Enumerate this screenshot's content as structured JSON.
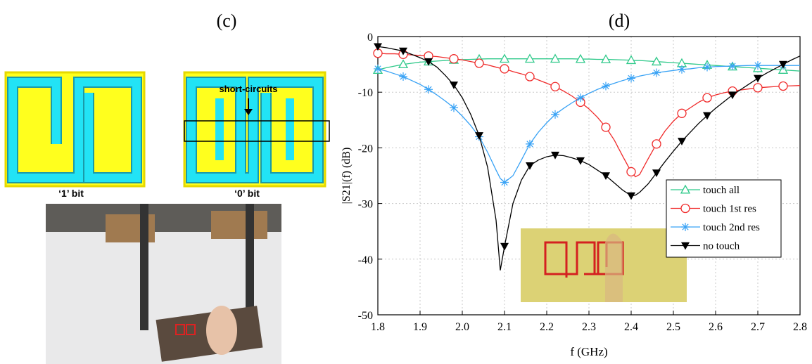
{
  "panel_c": {
    "label": "(c)",
    "annotation": "short-circuits",
    "bit_labels": [
      "‘1’ bit",
      "‘0’ bit"
    ]
  },
  "chart_data": {
    "type": "line",
    "title": "(d)",
    "x_label": "f (GHz)",
    "y_label": "|S21|(f) (dB)",
    "x": [
      1.8,
      1.82,
      1.84,
      1.86,
      1.88,
      1.9,
      1.92,
      1.94,
      1.96,
      1.98,
      2.0,
      2.02,
      2.04,
      2.06,
      2.08,
      2.09,
      2.1,
      2.12,
      2.14,
      2.16,
      2.18,
      2.2,
      2.22,
      2.24,
      2.26,
      2.28,
      2.3,
      2.32,
      2.34,
      2.36,
      2.38,
      2.4,
      2.41,
      2.42,
      2.44,
      2.46,
      2.48,
      2.5,
      2.52,
      2.54,
      2.56,
      2.58,
      2.6,
      2.62,
      2.64,
      2.66,
      2.68,
      2.7,
      2.72,
      2.74,
      2.76,
      2.78,
      2.8
    ],
    "series": [
      {
        "name": "touch all",
        "color": "#2fc98a",
        "marker": "triangle-up",
        "values": [
          -6.0,
          -5.6,
          -5.3,
          -5.0,
          -4.8,
          -4.6,
          -4.5,
          -4.4,
          -4.3,
          -4.2,
          -4.15,
          -4.1,
          -4.05,
          -4.0,
          -4.0,
          -4.0,
          -4.0,
          -4.0,
          -4.0,
          -4.0,
          -4.0,
          -4.0,
          -4.0,
          -4.0,
          -4.0,
          -4.05,
          -4.05,
          -4.1,
          -4.1,
          -4.15,
          -4.2,
          -4.25,
          -4.3,
          -4.3,
          -4.4,
          -4.5,
          -4.6,
          -4.7,
          -4.8,
          -4.9,
          -5.0,
          -5.1,
          -5.2,
          -5.3,
          -5.4,
          -5.5,
          -5.6,
          -5.7,
          -5.8,
          -5.9,
          -6.0,
          -6.1,
          -6.2
        ]
      },
      {
        "name": "touch 1st res",
        "color": "#f02a2a",
        "marker": "circle",
        "values": [
          -3.0,
          -3.1,
          -3.1,
          -3.2,
          -3.3,
          -3.4,
          -3.5,
          -3.6,
          -3.8,
          -4.0,
          -4.2,
          -4.5,
          -4.8,
          -5.1,
          -5.5,
          -5.7,
          -5.8,
          -6.3,
          -6.7,
          -7.2,
          -7.8,
          -8.4,
          -9.0,
          -9.8,
          -10.7,
          -11.8,
          -13.0,
          -14.5,
          -16.3,
          -18.6,
          -21.5,
          -24.3,
          -25.2,
          -24.8,
          -22.0,
          -19.3,
          -17.0,
          -15.2,
          -13.8,
          -12.8,
          -11.8,
          -11.0,
          -10.5,
          -10.1,
          -9.8,
          -9.6,
          -9.4,
          -9.2,
          -9.1,
          -9.0,
          -8.9,
          -8.85,
          -8.8
        ]
      },
      {
        "name": "touch 2nd res",
        "color": "#38a2f5",
        "marker": "star",
        "values": [
          -5.8,
          -6.2,
          -6.7,
          -7.2,
          -7.9,
          -8.6,
          -9.5,
          -10.5,
          -11.6,
          -12.8,
          -14.3,
          -16.0,
          -18.0,
          -20.8,
          -24.0,
          -25.5,
          -26.2,
          -25.0,
          -22.2,
          -19.3,
          -17.2,
          -15.5,
          -14.0,
          -12.9,
          -11.9,
          -11.0,
          -10.2,
          -9.5,
          -8.9,
          -8.4,
          -7.9,
          -7.5,
          -7.3,
          -7.1,
          -6.8,
          -6.5,
          -6.3,
          -6.1,
          -5.9,
          -5.8,
          -5.6,
          -5.5,
          -5.4,
          -5.35,
          -5.3,
          -5.25,
          -5.2,
          -5.2,
          -5.2,
          -5.2,
          -5.2,
          -5.2,
          -5.2
        ]
      },
      {
        "name": "no touch",
        "color": "#000000",
        "marker": "triangle-down",
        "values": [
          -1.8,
          -2.0,
          -2.3,
          -2.6,
          -3.2,
          -3.8,
          -4.5,
          -5.5,
          -7.0,
          -8.7,
          -11.0,
          -14.0,
          -17.8,
          -23.5,
          -33.0,
          -42.0,
          -37.7,
          -30.0,
          -25.8,
          -23.2,
          -22.2,
          -21.6,
          -21.3,
          -21.4,
          -21.8,
          -22.3,
          -23.0,
          -24.0,
          -25.0,
          -26.3,
          -27.6,
          -28.6,
          -28.5,
          -28.0,
          -26.5,
          -24.5,
          -22.5,
          -20.6,
          -18.8,
          -17.2,
          -15.6,
          -14.2,
          -12.9,
          -11.7,
          -10.5,
          -9.5,
          -8.5,
          -7.5,
          -6.6,
          -5.8,
          -5.0,
          -4.2,
          -3.5
        ]
      }
    ],
    "xlim": [
      1.8,
      2.8
    ],
    "xticks": [
      1.8,
      1.9,
      {
        "value": 2,
        "label": "2.0"
      },
      2.1,
      2.2,
      2.3,
      2.4,
      2.5,
      2.6,
      2.7,
      2.8
    ],
    "ylim": [
      -50,
      0
    ],
    "yticks": [
      -50,
      -40,
      -30,
      -20,
      -10,
      0
    ],
    "grid": true,
    "legend": "right"
  }
}
